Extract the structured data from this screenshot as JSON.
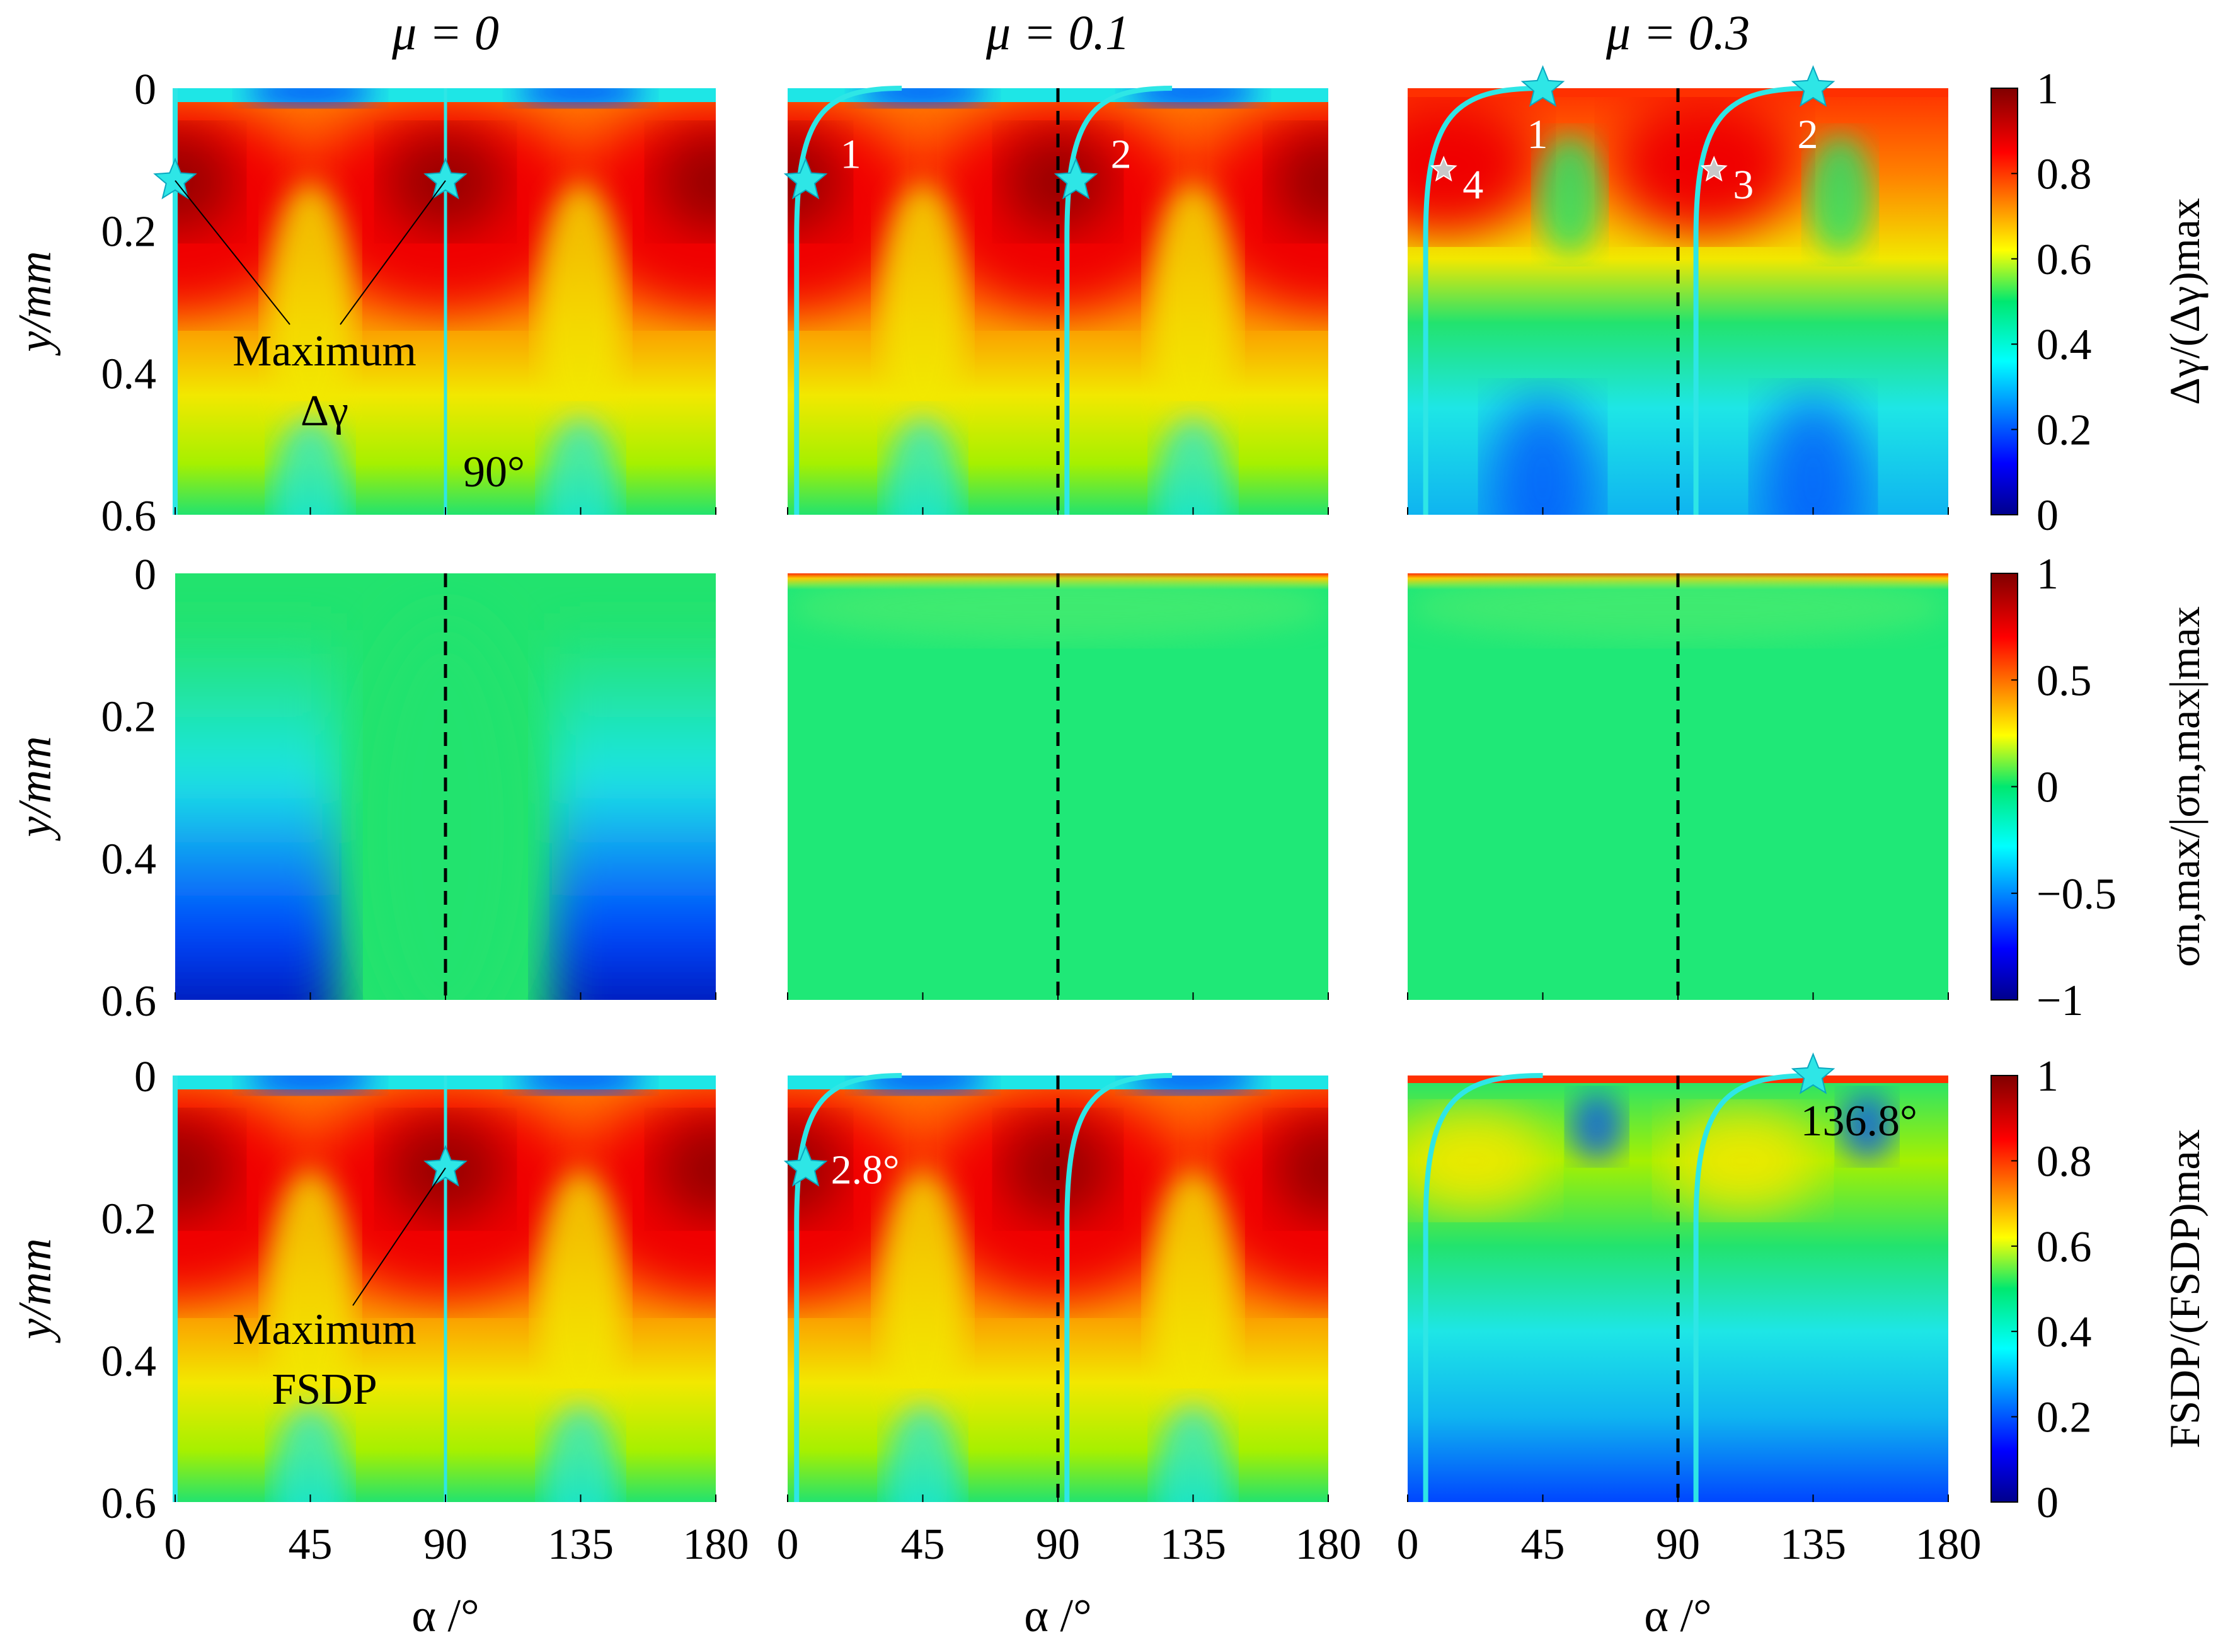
{
  "chart_data": {
    "type": "heatmap",
    "layout": "3x3 panel grid",
    "columns": [
      {
        "title": "μ = 0",
        "mu": 0
      },
      {
        "title": "μ = 0.1",
        "mu": 0.1
      },
      {
        "title": "μ = 0.3",
        "mu": 0.3
      }
    ],
    "rows": [
      {
        "name": "slip",
        "colorbar_label": "Δγ/(Δγ)max",
        "colorbar_ticks": [
          "0",
          "0.2",
          "0.4",
          "0.6",
          "0.8",
          "1"
        ],
        "colorbar_range": [
          0,
          1
        ]
      },
      {
        "name": "normal-stress",
        "colorbar_label": "σn,max/|σn,max|max",
        "colorbar_ticks": [
          "−1",
          "−0.5",
          "0",
          "0.5",
          "1"
        ],
        "colorbar_range": [
          -1,
          1
        ]
      },
      {
        "name": "fsdp",
        "colorbar_label": "FSDP/(FSDP)max",
        "colorbar_ticks": [
          "0",
          "0.2",
          "0.4",
          "0.6",
          "0.8",
          "1"
        ],
        "colorbar_range": [
          0,
          1
        ]
      }
    ],
    "xlabel": "α /°",
    "ylabel": "y/mm",
    "xlim": [
      0,
      180
    ],
    "ylim": [
      0,
      0.6
    ],
    "xticks": [
      "0",
      "45",
      "90",
      "135",
      "180"
    ],
    "yticks": [
      "0",
      "0.2",
      "0.4",
      "0.6"
    ],
    "reference_line_alpha": 90,
    "markers": [
      {
        "row": 0,
        "col": 0,
        "alpha": 0,
        "y": 0.13
      },
      {
        "row": 0,
        "col": 0,
        "alpha": 90,
        "y": 0.13
      },
      {
        "row": 0,
        "col": 1,
        "alpha": 6,
        "y": 0.13,
        "label": "1"
      },
      {
        "row": 0,
        "col": 1,
        "alpha": 96,
        "y": 0.13,
        "label": "2"
      },
      {
        "row": 0,
        "col": 2,
        "alpha": 45,
        "y": 0,
        "label": "1"
      },
      {
        "row": 0,
        "col": 2,
        "alpha": 135,
        "y": 0,
        "label": "2"
      },
      {
        "row": 0,
        "col": 2,
        "alpha": 102,
        "y": 0.115,
        "label": "3",
        "gray": true
      },
      {
        "row": 0,
        "col": 2,
        "alpha": 12,
        "y": 0.115,
        "label": "4",
        "gray": true
      },
      {
        "row": 2,
        "col": 0,
        "alpha": 90,
        "y": 0.13
      },
      {
        "row": 2,
        "col": 1,
        "alpha": 6,
        "y": 0.13,
        "label": "2.8°"
      },
      {
        "row": 2,
        "col": 2,
        "alpha": 135,
        "y": 0,
        "label": "136.8°"
      }
    ],
    "annotations": [
      {
        "row": 0,
        "col": 0,
        "lines": [
          "Maximum",
          "Δγ"
        ]
      },
      {
        "row": 0,
        "col": 0,
        "text": "90°"
      },
      {
        "row": 2,
        "col": 0,
        "lines": [
          "Maximum",
          "FSDP"
        ]
      }
    ],
    "colors": {
      "trajectory": "#2ee6e6",
      "reference_line": "#000000"
    }
  }
}
